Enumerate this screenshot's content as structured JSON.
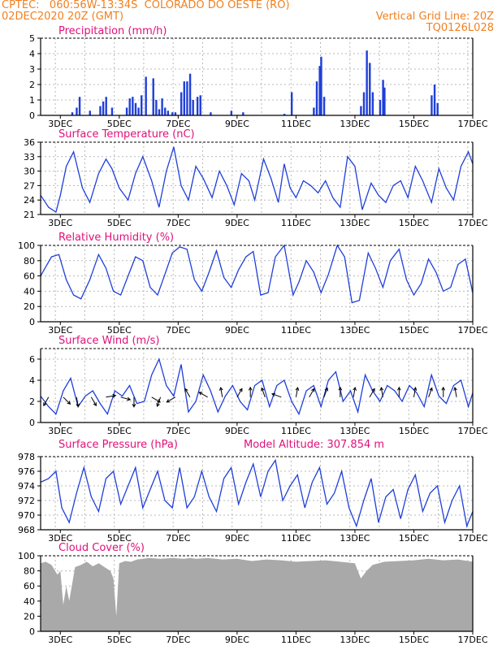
{
  "header": {
    "line1_left": "CPTEC:   060:56W-13:34S  COLORADO DO OESTE (RO)",
    "line2_left": "02DEC2020 20Z (GMT)",
    "line2_right": "Vertical Grid Line: 20Z",
    "line3_right": "TQ0126L028",
    "model_altitude": "Model Altitude: 307.854 m"
  },
  "colors": {
    "header": "#f08020",
    "title": "#e0107a",
    "series": "#1f3fd8",
    "cloud": "#a9a9a9",
    "grid": "#b8b8b8"
  },
  "x_ticks": [
    "3DEC",
    "5DEC",
    "7DEC",
    "9DEC",
    "11DEC",
    "13DEC",
    "15DEC",
    "17DEC"
  ],
  "chart_data": [
    {
      "type": "bar",
      "title": "Precipitation (mm/h)",
      "ylim": [
        0,
        5
      ],
      "yticks": [
        "0",
        "1",
        "2",
        "3",
        "4",
        "5"
      ],
      "x_range_days": [
        2.33,
        17.0
      ],
      "values": [
        [
          3.4,
          0.2
        ],
        [
          3.55,
          0.5
        ],
        [
          3.65,
          1.2
        ],
        [
          4.0,
          0.3
        ],
        [
          4.35,
          0.6
        ],
        [
          4.45,
          0.9
        ],
        [
          4.55,
          1.2
        ],
        [
          4.75,
          0.5
        ],
        [
          5.25,
          0.5
        ],
        [
          5.35,
          1.1
        ],
        [
          5.45,
          1.2
        ],
        [
          5.55,
          0.8
        ],
        [
          5.65,
          0.5
        ],
        [
          5.75,
          1.3
        ],
        [
          5.9,
          2.5
        ],
        [
          6.15,
          2.4
        ],
        [
          6.25,
          1.0
        ],
        [
          6.35,
          0.4
        ],
        [
          6.45,
          1.1
        ],
        [
          6.55,
          0.5
        ],
        [
          6.65,
          0.3
        ],
        [
          6.8,
          0.2
        ],
        [
          6.9,
          0.2
        ],
        [
          7.1,
          1.5
        ],
        [
          7.2,
          2.2
        ],
        [
          7.3,
          2.2
        ],
        [
          7.4,
          2.7
        ],
        [
          7.5,
          1.0
        ],
        [
          7.65,
          1.2
        ],
        [
          7.75,
          1.3
        ],
        [
          8.1,
          0.2
        ],
        [
          8.8,
          0.3
        ],
        [
          9.2,
          0.2
        ],
        [
          10.6,
          0.1
        ],
        [
          10.85,
          1.5
        ],
        [
          11.6,
          0.5
        ],
        [
          11.7,
          2.2
        ],
        [
          11.8,
          3.2
        ],
        [
          11.85,
          3.8
        ],
        [
          11.95,
          1.2
        ],
        [
          13.2,
          0.6
        ],
        [
          13.3,
          1.5
        ],
        [
          13.4,
          4.2
        ],
        [
          13.5,
          3.4
        ],
        [
          13.6,
          1.5
        ],
        [
          13.85,
          1.0
        ],
        [
          13.95,
          2.3
        ],
        [
          14.0,
          1.8
        ],
        [
          15.6,
          1.3
        ],
        [
          15.7,
          2.0
        ],
        [
          15.8,
          0.8
        ]
      ]
    },
    {
      "type": "line",
      "title": "Surface Temperature (nC)",
      "ylim": [
        21,
        36
      ],
      "yticks": [
        "21",
        "24",
        "27",
        "30",
        "33",
        "36"
      ],
      "x": [
        2.33,
        2.6,
        2.85,
        3.0,
        3.2,
        3.45,
        3.75,
        4.0,
        4.3,
        4.55,
        4.75,
        5.0,
        5.3,
        5.55,
        5.8,
        6.1,
        6.35,
        6.6,
        6.85,
        7.1,
        7.35,
        7.6,
        7.85,
        8.15,
        8.4,
        8.65,
        8.9,
        9.15,
        9.4,
        9.6,
        9.9,
        10.15,
        10.4,
        10.6,
        10.8,
        11.0,
        11.25,
        11.5,
        11.75,
        12.0,
        12.25,
        12.5,
        12.75,
        13.0,
        13.25,
        13.55,
        13.8,
        14.05,
        14.3,
        14.55,
        14.8,
        15.05,
        15.3,
        15.6,
        15.85,
        16.1,
        16.35,
        16.6,
        16.85,
        17.0
      ],
      "y": [
        25.0,
        22.5,
        21.5,
        25.0,
        31.0,
        34.0,
        26.5,
        23.5,
        29.5,
        32.5,
        30.5,
        26.5,
        24.0,
        29.5,
        33.0,
        28.0,
        22.5,
        30.0,
        35.0,
        27.0,
        24.0,
        31.0,
        28.5,
        24.5,
        30.0,
        27.0,
        23.0,
        29.5,
        28.0,
        24.0,
        32.5,
        28.5,
        23.5,
        31.5,
        26.5,
        24.5,
        28.0,
        27.0,
        25.5,
        28.0,
        24.5,
        22.5,
        33.0,
        31.0,
        22.0,
        27.5,
        25.0,
        23.5,
        27.0,
        28.0,
        24.5,
        31.0,
        28.0,
        23.5,
        30.5,
        26.5,
        24.0,
        31.0,
        34.0,
        31.5
      ]
    },
    {
      "type": "line",
      "title": "Relative Humidity (%)",
      "ylim": [
        0,
        100
      ],
      "yticks": [
        "0",
        "20",
        "40",
        "60",
        "80",
        "100"
      ],
      "x": [
        2.33,
        2.7,
        2.95,
        3.2,
        3.45,
        3.7,
        4.0,
        4.3,
        4.55,
        4.8,
        5.05,
        5.3,
        5.55,
        5.8,
        6.05,
        6.3,
        6.55,
        6.8,
        7.05,
        7.3,
        7.55,
        7.8,
        8.05,
        8.3,
        8.55,
        8.8,
        9.05,
        9.3,
        9.55,
        9.8,
        10.05,
        10.3,
        10.6,
        10.9,
        11.1,
        11.35,
        11.6,
        11.85,
        12.1,
        12.4,
        12.65,
        12.9,
        13.15,
        13.45,
        13.7,
        13.95,
        14.2,
        14.5,
        14.75,
        15.0,
        15.25,
        15.5,
        15.75,
        16.0,
        16.25,
        16.5,
        16.75,
        17.0
      ],
      "y": [
        60,
        85,
        88,
        55,
        35,
        30,
        55,
        88,
        70,
        40,
        35,
        60,
        85,
        80,
        45,
        35,
        62,
        90,
        98,
        95,
        55,
        40,
        65,
        93,
        58,
        45,
        68,
        85,
        92,
        35,
        38,
        85,
        100,
        35,
        52,
        80,
        65,
        38,
        62,
        100,
        85,
        25,
        28,
        90,
        70,
        45,
        80,
        95,
        55,
        35,
        50,
        82,
        65,
        40,
        45,
        75,
        82,
        38
      ]
    },
    {
      "type": "line",
      "title": "Surface Wind (m/s)",
      "ylim": [
        0,
        7
      ],
      "yticks": [
        "0",
        "2",
        "4",
        "6"
      ],
      "x": [
        2.33,
        2.6,
        2.85,
        3.1,
        3.35,
        3.6,
        3.85,
        4.1,
        4.35,
        4.6,
        4.85,
        5.1,
        5.35,
        5.6,
        5.85,
        6.1,
        6.35,
        6.6,
        6.85,
        7.1,
        7.35,
        7.6,
        7.85,
        8.1,
        8.35,
        8.6,
        8.85,
        9.1,
        9.35,
        9.6,
        9.85,
        10.1,
        10.35,
        10.6,
        10.85,
        11.1,
        11.35,
        11.6,
        11.85,
        12.1,
        12.35,
        12.6,
        12.85,
        13.1,
        13.35,
        13.6,
        13.85,
        14.1,
        14.35,
        14.6,
        14.85,
        15.1,
        15.35,
        15.6,
        15.85,
        16.1,
        16.35,
        16.6,
        16.85,
        17.0
      ],
      "y": [
        2.5,
        1.5,
        0.8,
        3.0,
        4.2,
        1.5,
        2.5,
        3.0,
        1.8,
        0.8,
        3.0,
        2.5,
        3.5,
        1.8,
        2.0,
        4.5,
        6.0,
        3.5,
        2.5,
        5.5,
        1.0,
        2.0,
        4.5,
        3.0,
        1.0,
        2.5,
        3.5,
        2.0,
        1.2,
        3.5,
        4.0,
        1.5,
        3.5,
        4.0,
        2.0,
        0.8,
        3.0,
        3.5,
        1.5,
        4.0,
        4.8,
        2.0,
        3.0,
        1.0,
        4.5,
        3.0,
        2.0,
        3.5,
        3.0,
        2.0,
        3.5,
        2.8,
        1.5,
        4.5,
        2.5,
        1.8,
        3.5,
        4.0,
        1.5,
        2.8
      ],
      "arrows_at": [
        2.6,
        3.1,
        3.55,
        4.05,
        4.55,
        5.05,
        5.5,
        6.1,
        6.4,
        6.9,
        7.4,
        8.0,
        8.5,
        9.0,
        9.45,
        9.95,
        10.5,
        11.0,
        11.45,
        11.95,
        12.5,
        12.95,
        13.5,
        13.95,
        14.5,
        15.0,
        15.5,
        16.0,
        16.45
      ],
      "arrow_dirs": [
        120,
        45,
        80,
        60,
        -10,
        15,
        90,
        30,
        110,
        150,
        240,
        210,
        260,
        300,
        270,
        250,
        200,
        280,
        300,
        290,
        270,
        280,
        300,
        260,
        270,
        280,
        290,
        270,
        260
      ]
    },
    {
      "type": "line",
      "title": "Surface Pressure (hPa)",
      "ylim": [
        968,
        978
      ],
      "yticks": [
        "968",
        "970",
        "972",
        "974",
        "976",
        "978"
      ],
      "x": [
        2.33,
        2.6,
        2.85,
        3.05,
        3.3,
        3.55,
        3.8,
        4.05,
        4.3,
        4.55,
        4.8,
        5.05,
        5.3,
        5.55,
        5.8,
        6.05,
        6.3,
        6.55,
        6.8,
        7.05,
        7.3,
        7.55,
        7.8,
        8.05,
        8.3,
        8.55,
        8.8,
        9.05,
        9.3,
        9.55,
        9.8,
        10.05,
        10.3,
        10.55,
        10.8,
        11.05,
        11.3,
        11.55,
        11.8,
        12.05,
        12.3,
        12.55,
        12.8,
        13.05,
        13.3,
        13.55,
        13.8,
        14.05,
        14.3,
        14.55,
        14.8,
        15.05,
        15.3,
        15.55,
        15.8,
        16.05,
        16.3,
        16.55,
        16.8,
        17.0
      ],
      "y": [
        974.5,
        975.0,
        976.0,
        971.0,
        969.0,
        973.0,
        976.5,
        972.5,
        970.5,
        975.0,
        976.0,
        971.5,
        974.0,
        976.5,
        971.0,
        973.5,
        976.0,
        972.0,
        971.0,
        976.5,
        971.0,
        972.5,
        976.0,
        972.5,
        970.5,
        975.0,
        976.5,
        971.5,
        974.5,
        977.0,
        972.5,
        976.0,
        977.5,
        972.0,
        974.0,
        975.5,
        971.0,
        974.5,
        976.5,
        971.5,
        973.0,
        976.0,
        971.0,
        968.5,
        972.0,
        975.0,
        969.0,
        972.5,
        973.5,
        969.5,
        973.5,
        975.5,
        970.5,
        973.0,
        974.0,
        969.0,
        972.0,
        974.0,
        968.5,
        970.5
      ]
    },
    {
      "type": "area",
      "title": "Cloud Cover (%)",
      "ylim": [
        0,
        100
      ],
      "yticks": [
        "0",
        "20",
        "40",
        "60",
        "80",
        "100"
      ],
      "x": [
        2.33,
        2.5,
        2.7,
        2.9,
        3.0,
        3.1,
        3.2,
        3.3,
        3.5,
        3.7,
        3.9,
        4.1,
        4.3,
        4.5,
        4.7,
        4.8,
        4.9,
        5.0,
        5.2,
        5.4,
        5.6,
        5.8,
        6.0,
        6.4,
        6.8,
        7.2,
        7.4,
        7.6,
        8.0,
        8.5,
        9.0,
        9.5,
        10.0,
        10.5,
        11.0,
        11.5,
        12.0,
        12.5,
        13.0,
        13.2,
        13.4,
        13.6,
        14.0,
        14.5,
        15.0,
        15.5,
        16.0,
        16.5,
        17.0
      ],
      "y": [
        90,
        92,
        88,
        75,
        80,
        35,
        60,
        40,
        85,
        88,
        92,
        86,
        90,
        85,
        80,
        70,
        20,
        90,
        93,
        92,
        95,
        96,
        97,
        96,
        97,
        96,
        97,
        96,
        97,
        95,
        96,
        93,
        95,
        94,
        92,
        93,
        94,
        92,
        90,
        70,
        80,
        88,
        92,
        93,
        94,
        96,
        94,
        95,
        92
      ]
    }
  ]
}
